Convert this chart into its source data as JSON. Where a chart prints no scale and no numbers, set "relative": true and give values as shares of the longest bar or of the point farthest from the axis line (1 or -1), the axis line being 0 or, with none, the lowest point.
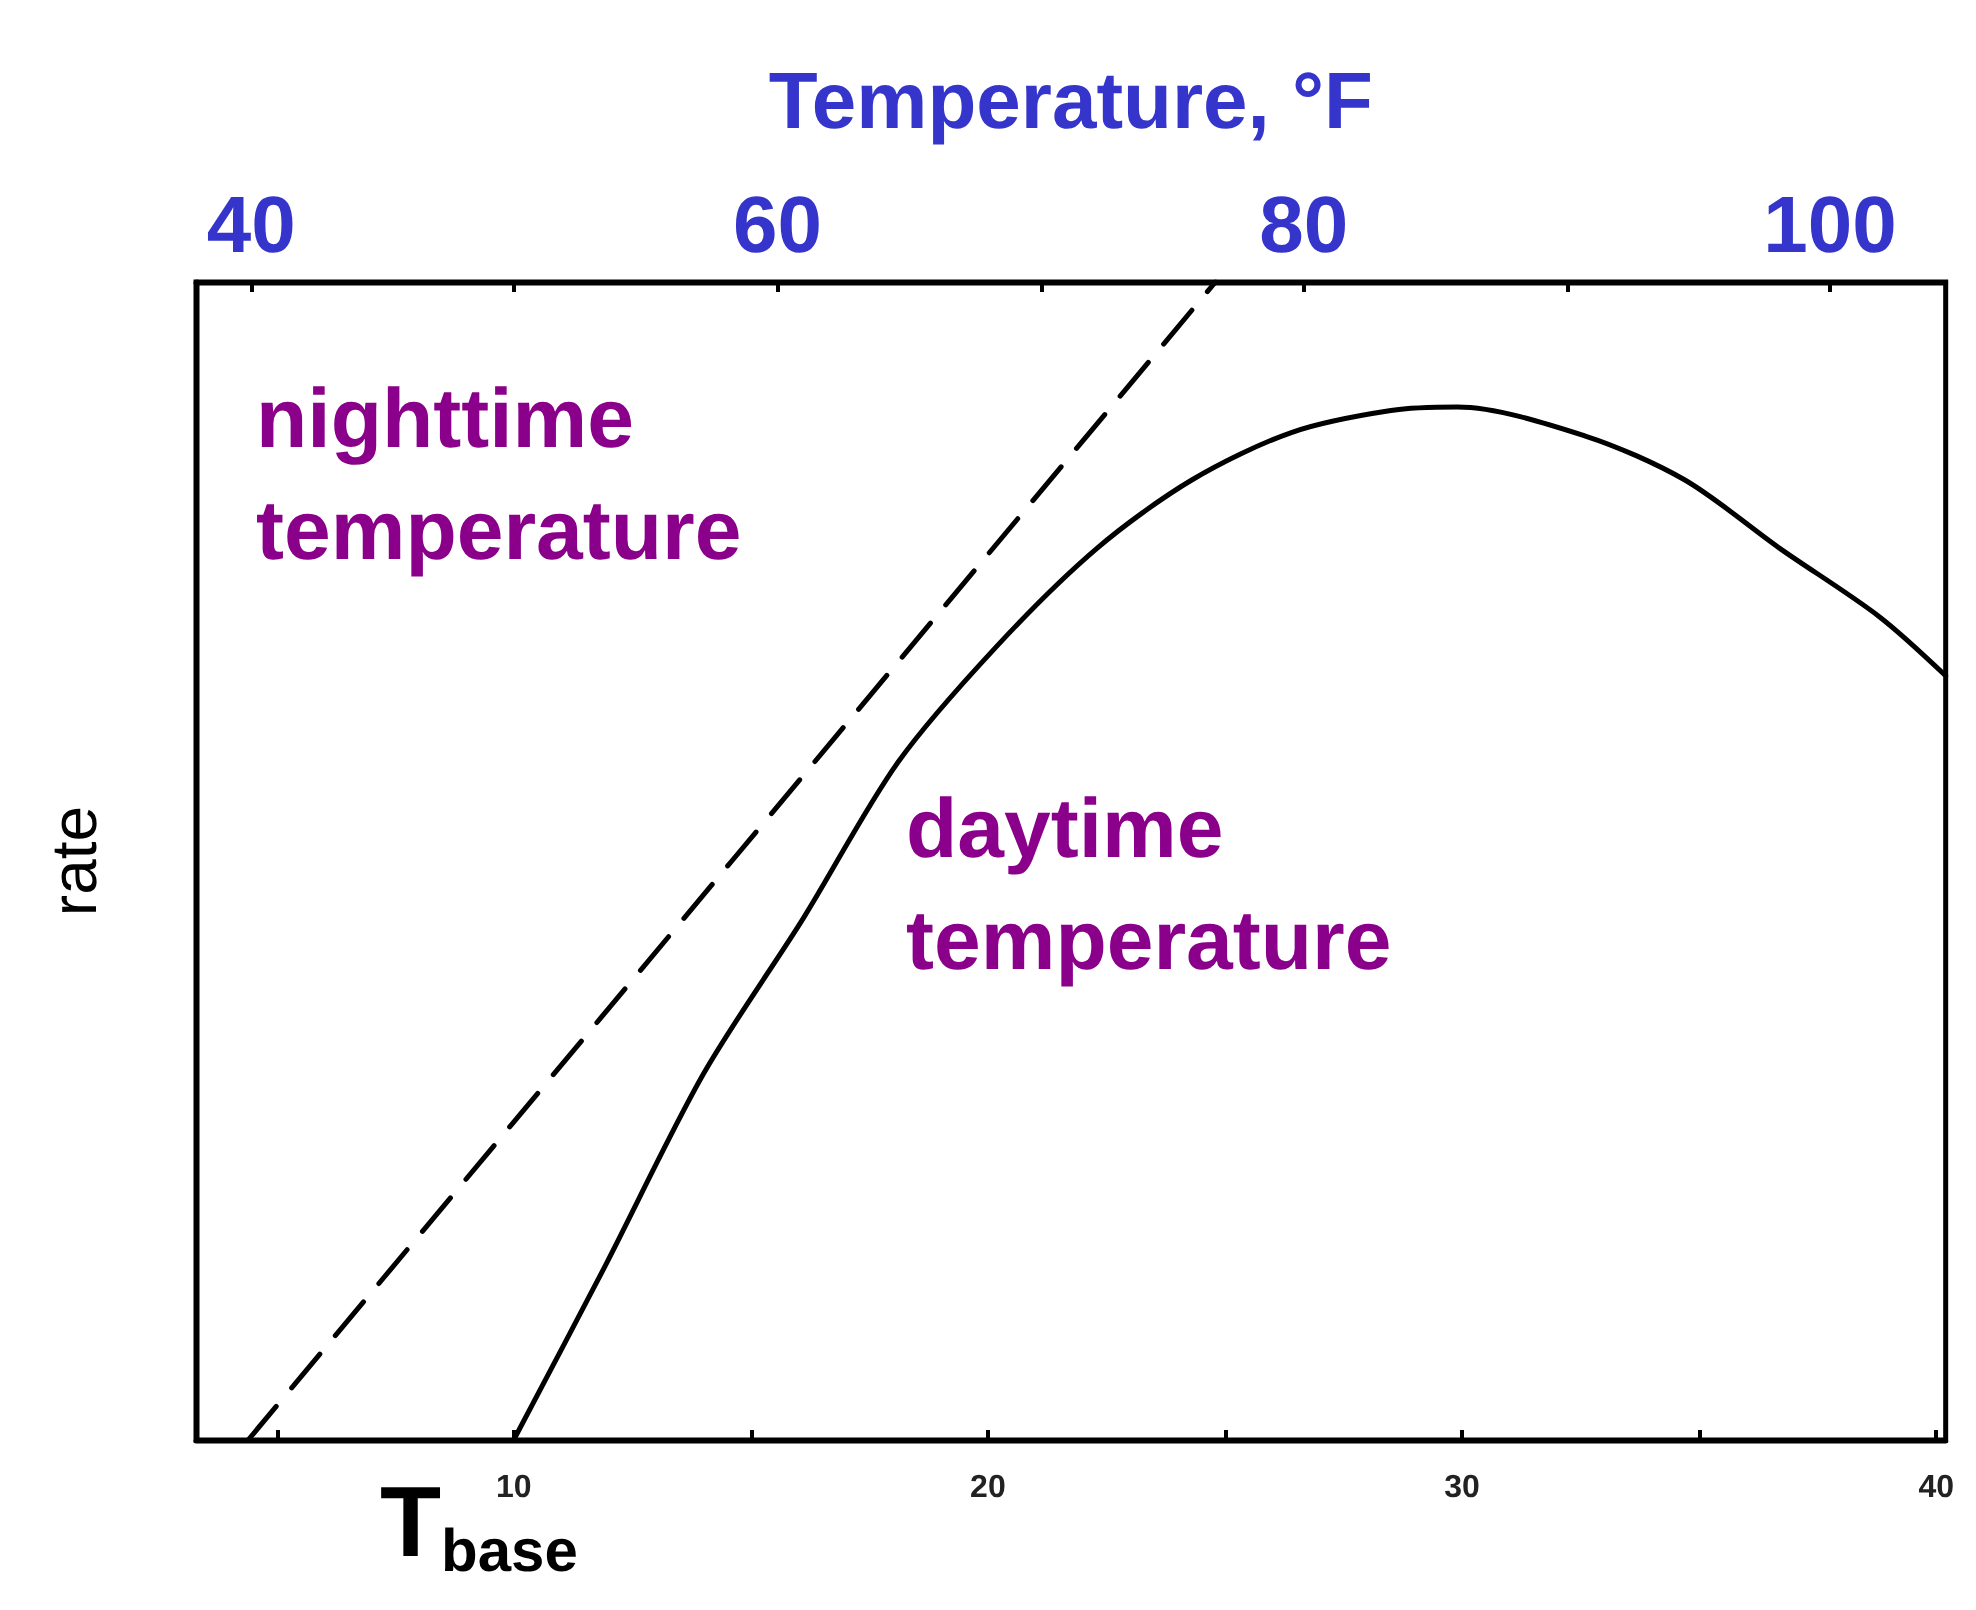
{
  "chart_data": {
    "type": "line",
    "relative": true,
    "x2label": "Temperature, °F",
    "ylabel": "rate",
    "xlim": [
      3.3,
      40.2
    ],
    "xticks": [
      {
        "value": 5,
        "label": null
      },
      10,
      {
        "value": 15,
        "label": null
      },
      20,
      {
        "value": 25,
        "label": null
      },
      30,
      {
        "value": 35,
        "label": null
      },
      40
    ],
    "x2lim": [
      37.9,
      104.4
    ],
    "x2ticks": [
      40,
      {
        "value": 50,
        "label": null
      },
      60,
      {
        "value": 70,
        "label": null
      },
      80,
      {
        "value": 90,
        "label": null
      },
      100
    ],
    "series": [
      {
        "color": "#000000",
        "line_style": "dashed",
        "x": [
          4.4,
          24.8
        ],
        "values": [
          0,
          1
        ]
      },
      {
        "color": "#000000",
        "line_style": "solid",
        "x": [
          10,
          11.9,
          14.0,
          16.1,
          18.1,
          20.2,
          22.3,
          24.3,
          26.4,
          28.5,
          29.9,
          32.6,
          34.7,
          36.7,
          38.8,
          40.2
        ],
        "values": [
          0,
          0.148,
          0.316,
          0.45,
          0.585,
          0.686,
          0.77,
          0.829,
          0.87,
          0.889,
          0.892,
          0.867,
          0.829,
          0.77,
          0.711,
          0.66
        ]
      }
    ],
    "marker": "none",
    "grid": false,
    "annotations": [
      "nighttime\ntemperature",
      "daytime\ntemperature",
      "T$_{base}$"
    ]
  }
}
